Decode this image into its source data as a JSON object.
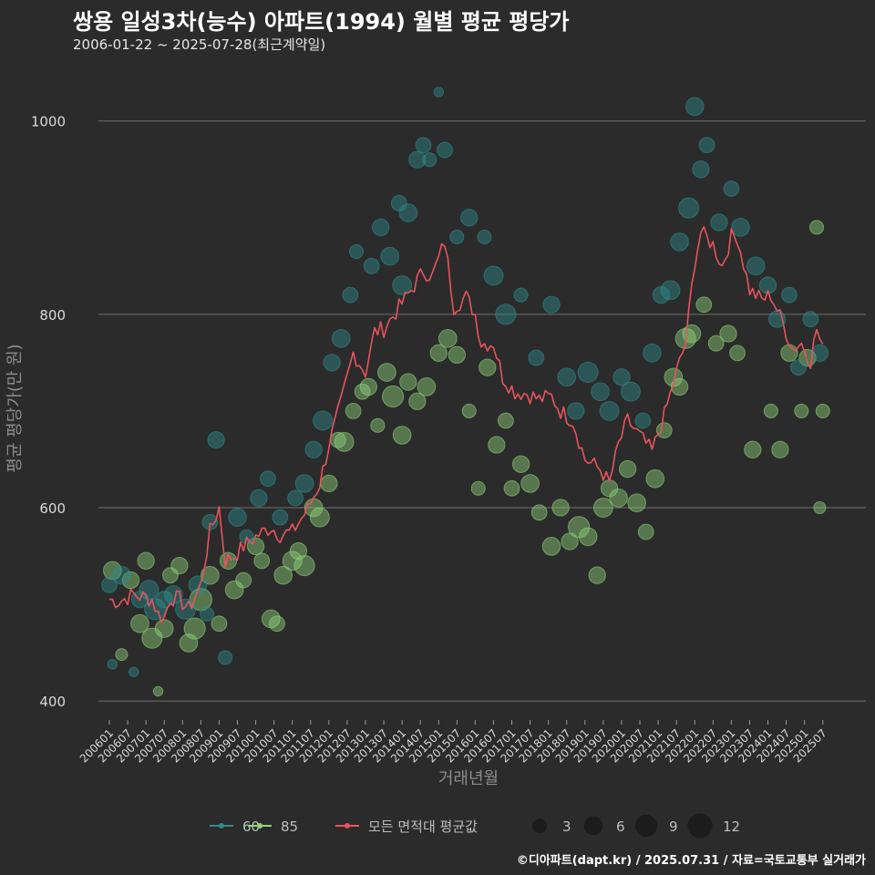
{
  "title": "쌍용 일성3차(능수) 아파트(1994) 월별 평균 평당가",
  "subtitle": "2006-01-22 ~ 2025-07-28(최근계약일)",
  "caption": "©디아파트(dapt.kr) / 2025.07.31 / 자료=국토교통부 실거래가",
  "colors": {
    "background": "#2b2b2b",
    "grid": "#707070",
    "series_60": "#2e8b8b",
    "series_85": "#8fd27a",
    "series_all": "#e8545c"
  },
  "chart_data": {
    "type": "scatter",
    "xlabel": "거래년월",
    "ylabel": "평균 평당가(만 원)",
    "ylim": [
      385,
      1045
    ],
    "yticks": [
      400,
      600,
      800,
      1000
    ],
    "grid": true,
    "legend_position": "bottom",
    "xticks": [
      "200601",
      "200607",
      "200701",
      "200707",
      "200801",
      "200807",
      "200901",
      "200907",
      "201001",
      "201007",
      "201101",
      "201107",
      "201201",
      "201207",
      "201301",
      "201307",
      "201401",
      "201407",
      "201501",
      "201507",
      "201601",
      "201607",
      "201701",
      "201707",
      "201801",
      "201807",
      "201901",
      "201907",
      "202001",
      "202007",
      "202101",
      "202107",
      "202201",
      "202207",
      "202301",
      "202307",
      "202401",
      "202407",
      "202501",
      "202507"
    ],
    "legend": {
      "series": [
        {
          "name": "60",
          "color": "#2e8b8b"
        },
        {
          "name": "85",
          "color": "#8fd27a"
        },
        {
          "name": "모든 면적대 평균값",
          "color": "#e8545c"
        }
      ],
      "sizes": [
        3,
        6,
        9,
        12
      ]
    },
    "series_all_anchors": [
      [
        "2006-01",
        505
      ],
      [
        "2006-04",
        503
      ],
      [
        "2006-09",
        510
      ],
      [
        "2007-03",
        505
      ],
      [
        "2007-05",
        490
      ],
      [
        "2007-07",
        486
      ],
      [
        "2007-09",
        507
      ],
      [
        "2007-12",
        505
      ],
      [
        "2008-03",
        495
      ],
      [
        "2008-07",
        520
      ],
      [
        "2008-10",
        575
      ],
      [
        "2009-01",
        600
      ],
      [
        "2009-03",
        545
      ],
      [
        "2009-06",
        550
      ],
      [
        "2009-09",
        560
      ],
      [
        "2010-01",
        570
      ],
      [
        "2010-06",
        580
      ],
      [
        "2010-09",
        572
      ],
      [
        "2011-01",
        575
      ],
      [
        "2011-06",
        598
      ],
      [
        "2011-10",
        625
      ],
      [
        "2012-01",
        665
      ],
      [
        "2012-05",
        708
      ],
      [
        "2012-09",
        760
      ],
      [
        "2013-01",
        740
      ],
      [
        "2013-04",
        782
      ],
      [
        "2013-07",
        785
      ],
      [
        "2013-12",
        807
      ],
      [
        "2014-04",
        825
      ],
      [
        "2014-08",
        845
      ],
      [
        "2014-11",
        840
      ],
      [
        "2015-03",
        875
      ],
      [
        "2015-06",
        808
      ],
      [
        "2015-10",
        818
      ],
      [
        "2016-01",
        800
      ],
      [
        "2016-03",
        770
      ],
      [
        "2016-07",
        770
      ],
      [
        "2016-10",
        735
      ],
      [
        "2017-02",
        720
      ],
      [
        "2017-06",
        718
      ],
      [
        "2017-10",
        712
      ],
      [
        "2018-02",
        715
      ],
      [
        "2018-05",
        700
      ],
      [
        "2018-09",
        690
      ],
      [
        "2019-01",
        650
      ],
      [
        "2019-06",
        640
      ],
      [
        "2019-09",
        625
      ],
      [
        "2019-12",
        665
      ],
      [
        "2020-03",
        690
      ],
      [
        "2020-08",
        670
      ],
      [
        "2020-11",
        658
      ],
      [
        "2021-03",
        695
      ],
      [
        "2021-07",
        740
      ],
      [
        "2021-10",
        770
      ],
      [
        "2022-01",
        855
      ],
      [
        "2022-03",
        885
      ],
      [
        "2022-07",
        872
      ],
      [
        "2022-10",
        850
      ],
      [
        "2023-01",
        880
      ],
      [
        "2023-03",
        880
      ],
      [
        "2023-07",
        825
      ],
      [
        "2023-11",
        815
      ],
      [
        "2024-02",
        820
      ],
      [
        "2024-06",
        790
      ],
      [
        "2024-09",
        765
      ],
      [
        "2024-12",
        770
      ],
      [
        "2025-03",
        752
      ],
      [
        "2025-05",
        785
      ],
      [
        "2025-07",
        762
      ]
    ],
    "points_60": [
      [
        "2006-01",
        520,
        4
      ],
      [
        "2006-02",
        438,
        1
      ],
      [
        "2006-05",
        530,
        6
      ],
      [
        "2006-09",
        430,
        1
      ],
      [
        "2006-11",
        505,
        5
      ],
      [
        "2007-02",
        515,
        7
      ],
      [
        "2007-04",
        495,
        9
      ],
      [
        "2007-07",
        505,
        5
      ],
      [
        "2007-10",
        510,
        6
      ],
      [
        "2008-02",
        495,
        8
      ],
      [
        "2008-06",
        520,
        6
      ],
      [
        "2008-09",
        490,
        3
      ],
      [
        "2008-10",
        585,
        4
      ],
      [
        "2008-12",
        670,
        5
      ],
      [
        "2009-03",
        445,
        3
      ],
      [
        "2009-07",
        590,
        6
      ],
      [
        "2009-10",
        570,
        3
      ],
      [
        "2010-02",
        610,
        5
      ],
      [
        "2010-05",
        630,
        4
      ],
      [
        "2010-09",
        590,
        4
      ],
      [
        "2011-02",
        610,
        4
      ],
      [
        "2011-05",
        625,
        6
      ],
      [
        "2011-08",
        660,
        5
      ],
      [
        "2011-11",
        690,
        7
      ],
      [
        "2012-02",
        750,
        5
      ],
      [
        "2012-05",
        775,
        6
      ],
      [
        "2012-08",
        820,
        4
      ],
      [
        "2012-10",
        865,
        3
      ],
      [
        "2013-03",
        850,
        4
      ],
      [
        "2013-06",
        890,
        5
      ],
      [
        "2013-09",
        860,
        6
      ],
      [
        "2013-12",
        915,
        4
      ],
      [
        "2014-01",
        830,
        7
      ],
      [
        "2014-03",
        905,
        6
      ],
      [
        "2014-06",
        960,
        5
      ],
      [
        "2014-08",
        975,
        4
      ],
      [
        "2014-10",
        960,
        3
      ],
      [
        "2015-01",
        1030,
        1
      ],
      [
        "2015-03",
        970,
        4
      ],
      [
        "2015-07",
        880,
        3
      ],
      [
        "2015-11",
        900,
        5
      ],
      [
        "2016-04",
        880,
        3
      ],
      [
        "2016-07",
        840,
        7
      ],
      [
        "2016-11",
        800,
        8
      ],
      [
        "2017-04",
        820,
        3
      ],
      [
        "2017-09",
        755,
        4
      ],
      [
        "2018-02",
        810,
        5
      ],
      [
        "2018-07",
        735,
        6
      ],
      [
        "2018-10",
        700,
        5
      ],
      [
        "2019-02",
        740,
        8
      ],
      [
        "2019-06",
        720,
        6
      ],
      [
        "2019-09",
        700,
        7
      ],
      [
        "2020-01",
        735,
        5
      ],
      [
        "2020-04",
        720,
        7
      ],
      [
        "2020-08",
        690,
        4
      ],
      [
        "2020-11",
        760,
        6
      ],
      [
        "2021-02",
        820,
        5
      ],
      [
        "2021-05",
        825,
        7
      ],
      [
        "2021-08",
        875,
        6
      ],
      [
        "2021-11",
        910,
        8
      ],
      [
        "2022-01",
        1015,
        6
      ],
      [
        "2022-03",
        950,
        5
      ],
      [
        "2022-05",
        975,
        4
      ],
      [
        "2022-09",
        895,
        5
      ],
      [
        "2023-01",
        930,
        4
      ],
      [
        "2023-04",
        890,
        6
      ],
      [
        "2023-09",
        850,
        6
      ],
      [
        "2024-01",
        830,
        5
      ],
      [
        "2024-04",
        795,
        5
      ],
      [
        "2024-08",
        820,
        4
      ],
      [
        "2024-11",
        745,
        4
      ],
      [
        "2025-03",
        795,
        4
      ],
      [
        "2025-06",
        760,
        5
      ]
    ],
    "points_85": [
      [
        "2006-02",
        535,
        6
      ],
      [
        "2006-05",
        448,
        2
      ],
      [
        "2006-08",
        525,
        5
      ],
      [
        "2006-11",
        480,
        6
      ],
      [
        "2007-01",
        545,
        5
      ],
      [
        "2007-03",
        465,
        8
      ],
      [
        "2007-05",
        410,
        1
      ],
      [
        "2007-07",
        475,
        6
      ],
      [
        "2007-09",
        530,
        4
      ],
      [
        "2007-12",
        540,
        5
      ],
      [
        "2008-03",
        460,
        6
      ],
      [
        "2008-05",
        475,
        9
      ],
      [
        "2008-07",
        505,
        10
      ],
      [
        "2008-10",
        530,
        6
      ],
      [
        "2009-01",
        480,
        4
      ],
      [
        "2009-04",
        545,
        5
      ],
      [
        "2009-06",
        515,
        6
      ],
      [
        "2009-09",
        525,
        4
      ],
      [
        "2010-01",
        560,
        5
      ],
      [
        "2010-03",
        545,
        4
      ],
      [
        "2010-06",
        485,
        6
      ],
      [
        "2010-08",
        480,
        4
      ],
      [
        "2010-10",
        530,
        6
      ],
      [
        "2011-01",
        545,
        7
      ],
      [
        "2011-03",
        555,
        5
      ],
      [
        "2011-05",
        540,
        8
      ],
      [
        "2011-08",
        600,
        6
      ],
      [
        "2011-10",
        590,
        7
      ],
      [
        "2012-01",
        625,
        5
      ],
      [
        "2012-04",
        670,
        4
      ],
      [
        "2012-06",
        668,
        7
      ],
      [
        "2012-09",
        700,
        4
      ],
      [
        "2012-12",
        720,
        4
      ],
      [
        "2013-02",
        725,
        5
      ],
      [
        "2013-05",
        685,
        3
      ],
      [
        "2013-08",
        740,
        6
      ],
      [
        "2013-10",
        715,
        9
      ],
      [
        "2014-01",
        675,
        6
      ],
      [
        "2014-03",
        730,
        5
      ],
      [
        "2014-06",
        710,
        5
      ],
      [
        "2014-09",
        725,
        6
      ],
      [
        "2015-01",
        760,
        5
      ],
      [
        "2015-04",
        775,
        6
      ],
      [
        "2015-07",
        758,
        5
      ],
      [
        "2015-11",
        700,
        3
      ],
      [
        "2016-02",
        620,
        3
      ],
      [
        "2016-05",
        745,
        5
      ],
      [
        "2016-08",
        665,
        5
      ],
      [
        "2016-11",
        690,
        4
      ],
      [
        "2017-01",
        620,
        4
      ],
      [
        "2017-04",
        645,
        5
      ],
      [
        "2017-07",
        625,
        6
      ],
      [
        "2017-10",
        595,
        4
      ],
      [
        "2018-02",
        560,
        6
      ],
      [
        "2018-05",
        600,
        5
      ],
      [
        "2018-08",
        565,
        5
      ],
      [
        "2018-11",
        580,
        9
      ],
      [
        "2019-02",
        570,
        6
      ],
      [
        "2019-05",
        530,
        5
      ],
      [
        "2019-07",
        600,
        7
      ],
      [
        "2019-09",
        620,
        5
      ],
      [
        "2019-12",
        610,
        6
      ],
      [
        "2020-03",
        640,
        5
      ],
      [
        "2020-06",
        605,
        6
      ],
      [
        "2020-09",
        575,
        4
      ],
      [
        "2020-12",
        630,
        6
      ],
      [
        "2021-03",
        680,
        4
      ],
      [
        "2021-06",
        735,
        6
      ],
      [
        "2021-08",
        725,
        5
      ],
      [
        "2021-10",
        775,
        8
      ],
      [
        "2021-12",
        780,
        6
      ],
      [
        "2022-04",
        810,
        4
      ],
      [
        "2022-08",
        770,
        4
      ],
      [
        "2022-12",
        780,
        5
      ],
      [
        "2023-03",
        760,
        4
      ],
      [
        "2023-08",
        660,
        5
      ],
      [
        "2024-02",
        700,
        3
      ],
      [
        "2024-05",
        660,
        5
      ],
      [
        "2024-08",
        760,
        5
      ],
      [
        "2024-12",
        700,
        3
      ],
      [
        "2025-02",
        755,
        5
      ],
      [
        "2025-05",
        890,
        3
      ],
      [
        "2025-06",
        600,
        2
      ],
      [
        "2025-07",
        700,
        3
      ]
    ]
  }
}
